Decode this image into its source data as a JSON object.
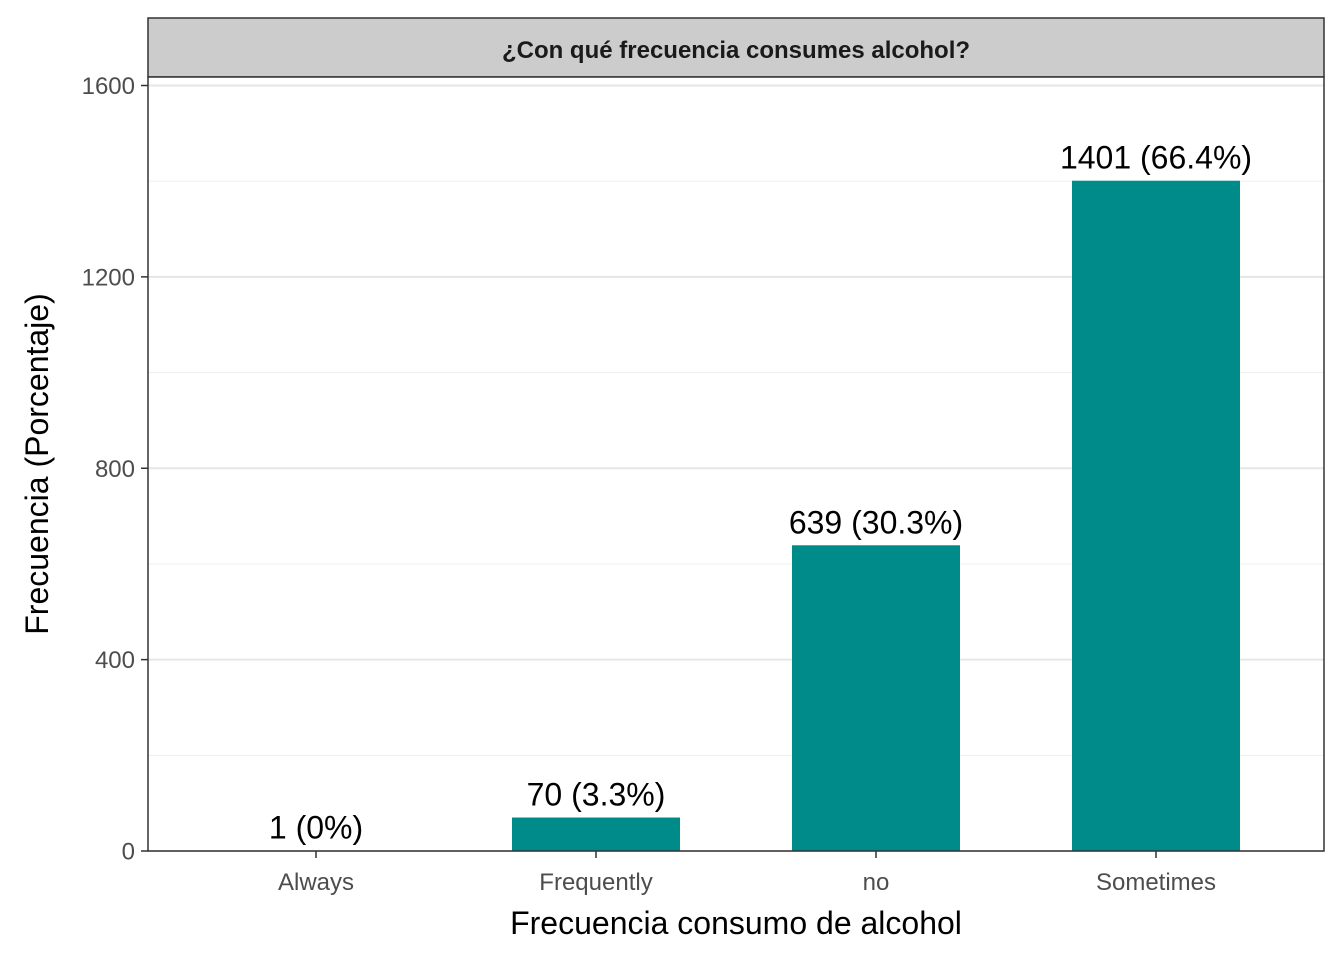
{
  "chart_data": {
    "type": "bar",
    "title": "¿Con qué frecuencia consumes alcohol?",
    "xlabel": "Frecuencia consumo de alcohol",
    "ylabel": "Frecuencia (Porcentaje)",
    "categories": [
      "Always",
      "Frequently",
      "no",
      "Sometimes"
    ],
    "values": [
      1,
      70,
      639,
      1401
    ],
    "data_labels": [
      "1 (0%)",
      "70 (3.3%)",
      "639 (30.3%)",
      "1401 (66.4%)"
    ],
    "ylim": [
      0,
      1600
    ],
    "yticks": [
      0,
      400,
      800,
      1200,
      1600
    ],
    "ytick_labels": [
      "0",
      "400",
      "800",
      "1200",
      "1600"
    ],
    "grid": true,
    "bar_color": "#008B8B"
  }
}
